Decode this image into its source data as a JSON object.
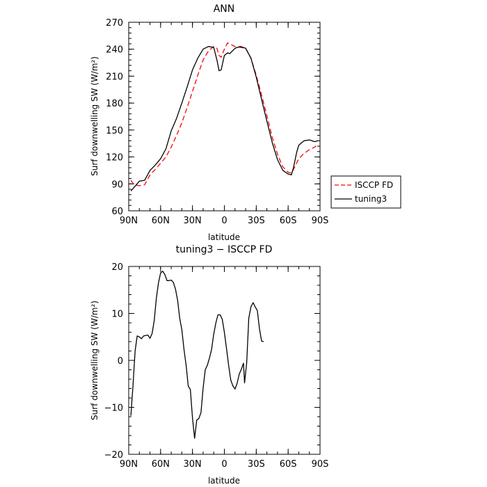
{
  "chart_data": [
    {
      "type": "line",
      "title": "ANN",
      "xlabel": "latitude",
      "ylabel": "Surf downwelling SW (W/m²)",
      "xlim": [
        90,
        -90
      ],
      "ylim": [
        60,
        270
      ],
      "x_ticks": [
        90,
        60,
        30,
        0,
        -30,
        -60,
        -90
      ],
      "x_tick_labels": [
        "90N",
        "60N",
        "30N",
        "0",
        "30S",
        "60S",
        "90S"
      ],
      "y_ticks": [
        60,
        90,
        120,
        150,
        180,
        210,
        240,
        270
      ],
      "y_tick_labels": [
        "60",
        "90",
        "120",
        "150",
        "180",
        "210",
        "240",
        "270"
      ],
      "legend_position": "right",
      "series": [
        {
          "name": "ISCCP FD",
          "color": "#ff0000",
          "dash": "dashed",
          "points": [
            [
              88,
              94
            ],
            [
              85,
              89
            ],
            [
              80,
              88
            ],
            [
              75,
              89
            ],
            [
              70,
              100
            ],
            [
              65,
              106
            ],
            [
              60,
              113
            ],
            [
              55,
              120
            ],
            [
              50,
              131
            ],
            [
              45,
              144
            ],
            [
              40,
              158
            ],
            [
              35,
              175
            ],
            [
              30,
              193
            ],
            [
              25,
              211
            ],
            [
              20,
              228
            ],
            [
              15,
              238
            ],
            [
              10,
              243
            ],
            [
              7,
              241
            ],
            [
              5,
              233
            ],
            [
              3,
              231
            ],
            [
              0,
              240
            ],
            [
              -3,
              247
            ],
            [
              -5,
              246
            ],
            [
              -10,
              243
            ],
            [
              -15,
              242
            ],
            [
              -20,
              241
            ],
            [
              -25,
              230
            ],
            [
              -30,
              211
            ],
            [
              -35,
              189
            ],
            [
              -40,
              166
            ],
            [
              -45,
              142
            ],
            [
              -50,
              123
            ],
            [
              -55,
              109
            ],
            [
              -60,
              103
            ],
            [
              -63,
              102
            ],
            [
              -65,
              106
            ],
            [
              -70,
              118
            ],
            [
              -75,
              124
            ],
            [
              -80,
              128
            ],
            [
              -85,
              131
            ],
            [
              -88,
              134
            ]
          ]
        },
        {
          "name": "tuning3",
          "color": "#000000",
          "dash": "solid",
          "points": [
            [
              88,
              82
            ],
            [
              85,
              86
            ],
            [
              80,
              93
            ],
            [
              75,
              94
            ],
            [
              70,
              105
            ],
            [
              65,
              111
            ],
            [
              60,
              118
            ],
            [
              55,
              129
            ],
            [
              50,
              149
            ],
            [
              45,
              163
            ],
            [
              40,
              180
            ],
            [
              35,
              198
            ],
            [
              30,
              217
            ],
            [
              25,
              230
            ],
            [
              20,
              240
            ],
            [
              15,
              243
            ],
            [
              10,
              242
            ],
            [
              7,
              228
            ],
            [
              5,
              216
            ],
            [
              3,
              217
            ],
            [
              0,
              233
            ],
            [
              -3,
              236
            ],
            [
              -5,
              235
            ],
            [
              -10,
              241
            ],
            [
              -15,
              243
            ],
            [
              -20,
              241
            ],
            [
              -25,
              230
            ],
            [
              -30,
              209
            ],
            [
              -35,
              184
            ],
            [
              -40,
              160
            ],
            [
              -45,
              136
            ],
            [
              -50,
              117
            ],
            [
              -55,
              105
            ],
            [
              -60,
              101
            ],
            [
              -63,
              100
            ],
            [
              -65,
              108
            ],
            [
              -68,
              125
            ],
            [
              -70,
              133
            ],
            [
              -75,
              138
            ],
            [
              -80,
              139
            ],
            [
              -85,
              137
            ],
            [
              -88,
              138
            ]
          ]
        }
      ]
    },
    {
      "type": "line",
      "title": "tuning3 − ISCCP FD",
      "xlabel": "latitude",
      "ylabel": "Surf downwelling SW (W/m²)",
      "xlim": [
        90,
        -90
      ],
      "ylim": [
        -20,
        20
      ],
      "x_ticks": [
        90,
        60,
        30,
        0,
        -30,
        -60,
        -90
      ],
      "x_tick_labels": [
        "90N",
        "60N",
        "30N",
        "0",
        "30S",
        "60S",
        "90S"
      ],
      "y_ticks": [
        -20,
        -10,
        0,
        10,
        20
      ],
      "y_tick_labels": [
        "−20",
        "−10",
        "0",
        "10",
        "20"
      ],
      "series": [
        {
          "color": "#000000",
          "dash": "solid",
          "points": [
            [
              88,
              -11.8
            ],
            [
              86,
              -5.5
            ],
            [
              84,
              2
            ],
            [
              82,
              5.2
            ],
            [
              80,
              5
            ],
            [
              78,
              4.6
            ],
            [
              76,
              5.2
            ],
            [
              72,
              5.4
            ],
            [
              70,
              4.7
            ],
            [
              68,
              5.7
            ],
            [
              66,
              8.5
            ],
            [
              64,
              13.2
            ],
            [
              62,
              16.5
            ],
            [
              60,
              18.6
            ],
            [
              58,
              19
            ],
            [
              56,
              18.3
            ],
            [
              54,
              17
            ],
            [
              52,
              17
            ],
            [
              50,
              17.1
            ],
            [
              48,
              16.6
            ],
            [
              46,
              15.2
            ],
            [
              44,
              12.8
            ],
            [
              42,
              9
            ],
            [
              40,
              6.5
            ],
            [
              38,
              2.4
            ],
            [
              36,
              -1
            ],
            [
              34,
              -5.5
            ],
            [
              32,
              -6.2
            ],
            [
              30,
              -12.3
            ],
            [
              28,
              -16.6
            ],
            [
              26,
              -12.7
            ],
            [
              24,
              -12.4
            ],
            [
              22,
              -11.1
            ],
            [
              20,
              -6
            ],
            [
              18,
              -2
            ],
            [
              16,
              -1
            ],
            [
              14,
              0.5
            ],
            [
              12,
              2.4
            ],
            [
              10,
              5.6
            ],
            [
              8,
              8
            ],
            [
              6,
              9.7
            ],
            [
              4,
              9.7
            ],
            [
              2,
              8.8
            ],
            [
              0,
              6
            ],
            [
              -2,
              2.5
            ],
            [
              -4,
              -1
            ],
            [
              -6,
              -4.2
            ],
            [
              -8,
              -5.4
            ],
            [
              -10,
              -6.1
            ],
            [
              -12,
              -4.9
            ],
            [
              -14,
              -2.9
            ],
            [
              -16,
              -1.9
            ],
            [
              -18,
              -0.6
            ],
            [
              -19,
              -4.8
            ],
            [
              -21,
              -0.5
            ],
            [
              -23,
              9
            ],
            [
              -25,
              11.4
            ],
            [
              -27,
              12.3
            ],
            [
              -29,
              11.4
            ],
            [
              -31,
              10.6
            ],
            [
              -33,
              6.8
            ],
            [
              -35,
              4.1
            ],
            [
              -37,
              4
            ]
          ]
        }
      ]
    }
  ]
}
